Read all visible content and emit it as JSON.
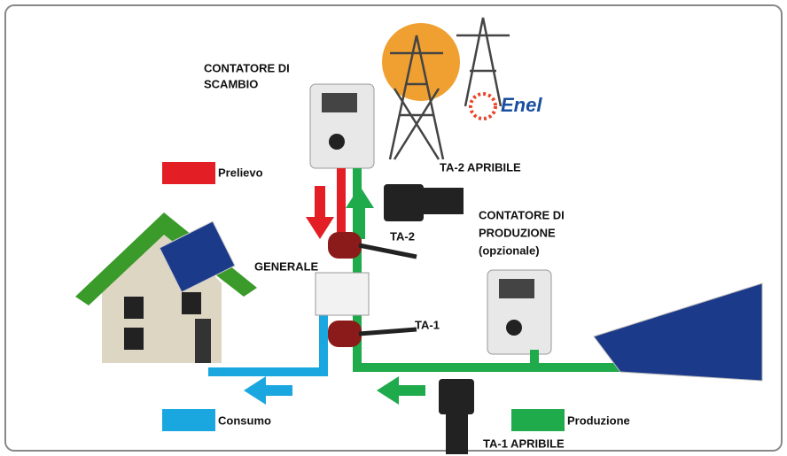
{
  "labels": {
    "contatore_scambio": [
      "CONTATORE DI",
      "SCAMBIO"
    ],
    "enel": "Enel",
    "prelievo": "Prelievo",
    "ta2_apribile": "TA-2 APRIBILE",
    "contatore_produzione": [
      "CONTATORE DI",
      "PRODUZIONE",
      "(opzionale)"
    ],
    "ta2": "TA-2",
    "generale": "GENERALE",
    "ta1": "TA-1",
    "consumo": "Consumo",
    "produzione": "Produzione",
    "ta1_apribile": "TA-1 APRIBILE"
  }
}
